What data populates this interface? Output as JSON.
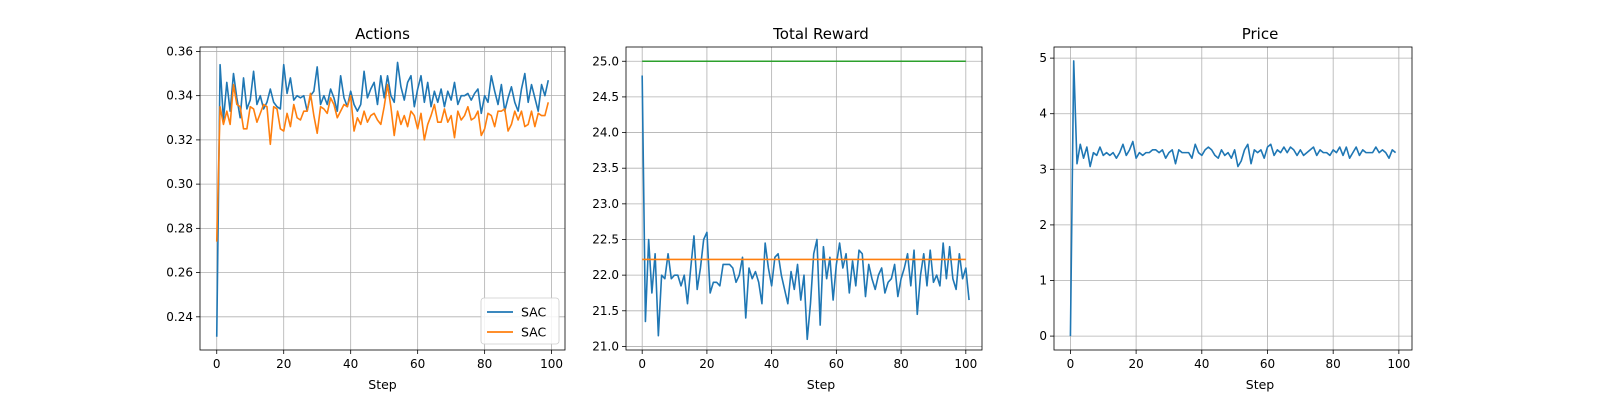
{
  "chart_data": [
    {
      "type": "line",
      "title": "Actions",
      "xlabel": "Step",
      "ylabel": "",
      "xlim": [
        -5,
        104
      ],
      "ylim": [
        0.225,
        0.362
      ],
      "xticks": [
        0,
        20,
        40,
        60,
        80,
        100
      ],
      "yticks": [
        0.24,
        0.26,
        0.28,
        0.3,
        0.32,
        0.34,
        0.36
      ],
      "ytick_labels": [
        "0.24",
        "0.26",
        "0.28",
        "0.30",
        "0.32",
        "0.34",
        "0.36"
      ],
      "xtick_labels": [
        "0",
        "20",
        "40",
        "60",
        "80",
        "100"
      ],
      "grid": true,
      "legend": "bottom-right",
      "series": [
        {
          "name": "SAC",
          "color": "#1f77b4",
          "x_start": 0,
          "values": [
            0.231,
            0.354,
            0.329,
            0.346,
            0.333,
            0.35,
            0.339,
            0.33,
            0.348,
            0.334,
            0.338,
            0.351,
            0.336,
            0.34,
            0.334,
            0.337,
            0.343,
            0.337,
            0.335,
            0.334,
            0.354,
            0.341,
            0.348,
            0.338,
            0.34,
            0.339,
            0.34,
            0.333,
            0.34,
            0.342,
            0.353,
            0.336,
            0.34,
            0.336,
            0.343,
            0.339,
            0.333,
            0.349,
            0.339,
            0.335,
            0.342,
            0.336,
            0.333,
            0.336,
            0.351,
            0.339,
            0.343,
            0.346,
            0.336,
            0.349,
            0.339,
            0.349,
            0.34,
            0.337,
            0.355,
            0.344,
            0.338,
            0.346,
            0.349,
            0.335,
            0.343,
            0.349,
            0.337,
            0.346,
            0.335,
            0.342,
            0.337,
            0.343,
            0.335,
            0.342,
            0.338,
            0.346,
            0.336,
            0.34,
            0.34,
            0.341,
            0.338,
            0.341,
            0.343,
            0.332,
            0.34,
            0.337,
            0.349,
            0.342,
            0.336,
            0.345,
            0.333,
            0.339,
            0.344,
            0.337,
            0.333,
            0.343,
            0.35,
            0.337,
            0.345,
            0.339,
            0.333,
            0.345,
            0.34,
            0.347
          ]
        },
        {
          "name": "SAC",
          "color": "#ff7f0e",
          "x_start": 0,
          "values": [
            0.274,
            0.335,
            0.327,
            0.333,
            0.327,
            0.345,
            0.336,
            0.335,
            0.325,
            0.325,
            0.335,
            0.334,
            0.328,
            0.332,
            0.336,
            0.335,
            0.318,
            0.335,
            0.334,
            0.325,
            0.324,
            0.332,
            0.326,
            0.336,
            0.33,
            0.329,
            0.333,
            0.333,
            0.341,
            0.331,
            0.323,
            0.335,
            0.334,
            0.332,
            0.339,
            0.336,
            0.33,
            0.333,
            0.336,
            0.335,
            0.34,
            0.324,
            0.33,
            0.327,
            0.333,
            0.328,
            0.331,
            0.332,
            0.329,
            0.327,
            0.335,
            0.345,
            0.335,
            0.322,
            0.333,
            0.327,
            0.331,
            0.326,
            0.333,
            0.331,
            0.325,
            0.332,
            0.32,
            0.327,
            0.331,
            0.336,
            0.328,
            0.328,
            0.334,
            0.328,
            0.331,
            0.321,
            0.333,
            0.329,
            0.331,
            0.335,
            0.329,
            0.33,
            0.333,
            0.322,
            0.325,
            0.332,
            0.331,
            0.326,
            0.333,
            0.333,
            0.334,
            0.324,
            0.327,
            0.333,
            0.329,
            0.333,
            0.326,
            0.327,
            0.333,
            0.326,
            0.332,
            0.331,
            0.331,
            0.337
          ]
        }
      ]
    },
    {
      "type": "line",
      "title": "Total Reward",
      "xlabel": "Step",
      "ylabel": "",
      "xlim": [
        -5,
        105
      ],
      "ylim": [
        20.95,
        25.2
      ],
      "xticks": [
        0,
        20,
        40,
        60,
        80,
        100
      ],
      "yticks": [
        21.0,
        21.5,
        22.0,
        22.5,
        23.0,
        23.5,
        24.0,
        24.5,
        25.0
      ],
      "ytick_labels": [
        "21.0",
        "21.5",
        "22.0",
        "22.5",
        "23.0",
        "23.5",
        "24.0",
        "24.5",
        "25.0"
      ],
      "xtick_labels": [
        "0",
        "20",
        "40",
        "60",
        "80",
        "100"
      ],
      "grid": true,
      "series": [
        {
          "color": "#1f77b4",
          "x_start": 0,
          "values": [
            24.8,
            21.35,
            22.5,
            21.75,
            22.3,
            21.15,
            22.0,
            21.95,
            22.3,
            21.95,
            22.0,
            22.0,
            21.85,
            22.0,
            21.6,
            22.1,
            22.55,
            21.8,
            22.1,
            22.5,
            22.6,
            21.75,
            21.9,
            21.9,
            21.85,
            22.15,
            22.15,
            22.15,
            22.1,
            21.9,
            22.0,
            22.25,
            21.4,
            22.1,
            21.95,
            22.05,
            21.9,
            21.6,
            22.45,
            22.1,
            21.85,
            22.25,
            22.3,
            22.0,
            21.8,
            21.6,
            22.05,
            21.8,
            22.15,
            21.65,
            22.0,
            21.1,
            21.6,
            22.3,
            22.5,
            21.3,
            22.4,
            21.95,
            22.25,
            21.65,
            22.15,
            22.45,
            22.1,
            22.3,
            21.75,
            22.2,
            21.85,
            22.35,
            22.3,
            21.7,
            22.15,
            21.95,
            21.8,
            22.0,
            22.1,
            21.75,
            21.9,
            21.95,
            22.15,
            21.7,
            21.95,
            22.1,
            22.3,
            21.85,
            22.35,
            21.45,
            22.0,
            22.3,
            21.85,
            22.35,
            21.9,
            22.0,
            21.85,
            22.45,
            21.95,
            22.4,
            21.95,
            21.8,
            22.3,
            21.95,
            22.1,
            21.65
          ]
        },
        {
          "color": "#ff7f0e",
          "x_start": 0,
          "values": [
            22.22,
            22.22
          ]
        },
        {
          "color": "#2ca02c",
          "x_start": 0,
          "values": [
            25.0,
            25.0
          ]
        }
      ]
    },
    {
      "type": "line",
      "title": "Price",
      "xlabel": "Step",
      "ylabel": "",
      "xlim": [
        -5,
        104
      ],
      "ylim": [
        -0.25,
        5.2
      ],
      "xticks": [
        0,
        20,
        40,
        60,
        80,
        100
      ],
      "yticks": [
        0,
        1,
        2,
        3,
        4,
        5
      ],
      "ytick_labels": [
        "0",
        "1",
        "2",
        "3",
        "4",
        "5"
      ],
      "xtick_labels": [
        "0",
        "20",
        "40",
        "60",
        "80",
        "100"
      ],
      "grid": true,
      "series": [
        {
          "color": "#1f77b4",
          "x_start": 0,
          "values": [
            0.0,
            4.95,
            3.1,
            3.45,
            3.2,
            3.4,
            3.05,
            3.3,
            3.25,
            3.4,
            3.25,
            3.3,
            3.25,
            3.3,
            3.2,
            3.3,
            3.45,
            3.25,
            3.35,
            3.5,
            3.2,
            3.3,
            3.25,
            3.3,
            3.3,
            3.35,
            3.35,
            3.3,
            3.35,
            3.2,
            3.3,
            3.35,
            3.1,
            3.35,
            3.3,
            3.3,
            3.3,
            3.2,
            3.45,
            3.3,
            3.25,
            3.35,
            3.4,
            3.35,
            3.25,
            3.2,
            3.35,
            3.25,
            3.3,
            3.2,
            3.35,
            3.05,
            3.15,
            3.35,
            3.45,
            3.1,
            3.35,
            3.3,
            3.35,
            3.2,
            3.4,
            3.45,
            3.25,
            3.35,
            3.3,
            3.4,
            3.3,
            3.4,
            3.35,
            3.25,
            3.35,
            3.25,
            3.3,
            3.35,
            3.4,
            3.25,
            3.35,
            3.3,
            3.3,
            3.25,
            3.35,
            3.3,
            3.4,
            3.25,
            3.4,
            3.2,
            3.3,
            3.4,
            3.25,
            3.35,
            3.3,
            3.3,
            3.3,
            3.4,
            3.3,
            3.35,
            3.3,
            3.2,
            3.35,
            3.3
          ]
        }
      ]
    }
  ]
}
